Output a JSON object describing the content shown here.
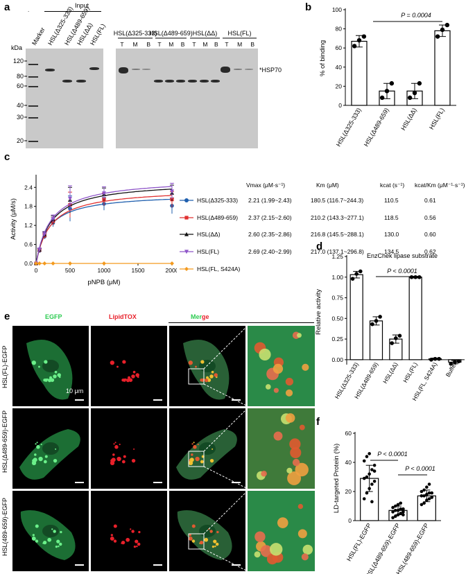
{
  "panels": {
    "a": {
      "label": "a",
      "dot": ".",
      "input_label": "Input",
      "marker_label": "Marker",
      "input_lanes": [
        "HSL(Δ325-333)",
        "HSL(Δ489-659)",
        "HSL(ΔΔ)",
        "HSL(FL)"
      ],
      "groups": [
        "HSL(Δ325-333)",
        "HSL(Δ489-659)",
        "HSL(ΔΔ)",
        "HSL(FL)"
      ],
      "lane_letters": [
        "T",
        "M",
        "B"
      ],
      "kda_label": "kDa",
      "kda": [
        "120",
        "80",
        "60",
        "40",
        "30",
        "20"
      ],
      "hsp70_label": "HSP70",
      "asterisk": "*"
    },
    "b": {
      "label": "b",
      "ylabel": "% of binding",
      "pvalue": "P = 0.0004",
      "yticks": [
        "0",
        "20",
        "40",
        "60",
        "80",
        "100"
      ],
      "categories": [
        "HSL(Δ325-333)",
        "HSL(Δ489-659)",
        "HSL(ΔΔ)",
        "HSL(FL)"
      ]
    },
    "c": {
      "label": "c",
      "ylabel": "Activity (μM/s)",
      "xlabel": "pNPB (μM)",
      "yticks": [
        "0.0",
        "0.6",
        "1.2",
        "1.8",
        "2.4"
      ],
      "xticks": [
        "0",
        "500",
        "1000",
        "1500",
        "2000"
      ],
      "table_headers": [
        "Vmax (μM·s⁻¹)",
        "Km (μM)",
        "kcat (s⁻¹)",
        "kcat/Km (μM⁻¹·s⁻¹)"
      ],
      "rows": [
        {
          "name": "HSL(Δ325-333)",
          "vmax": "2.21 (1.99~2.43)",
          "km": "180.5 (116.7~244.3)",
          "kcat": "110.5",
          "ratio": "0.61"
        },
        {
          "name": "HSL(Δ489-659)",
          "vmax": "2.37 (2.15~2.60)",
          "km": "210.2 (143.3~277.1)",
          "kcat": "118.5",
          "ratio": "0.56"
        },
        {
          "name": "HSL(ΔΔ)",
          "vmax": "2.60 (2.35~2.86)",
          "km": "216.8 (145.5~288.1)",
          "kcat": "130.0",
          "ratio": "0.60"
        },
        {
          "name": "HSL(FL)",
          "vmax": "2.69 (2.40~2.99)",
          "km": "217.0 (137.1~296.8)",
          "kcat": "134.5",
          "ratio": "0.62"
        },
        {
          "name": "HSL(FL, S424A)",
          "vmax": "",
          "km": "",
          "kcat": "",
          "ratio": ""
        }
      ]
    },
    "d": {
      "label": "d",
      "title": "EnzChek lipase substrate",
      "ylabel": "Relative activity",
      "pvalue": "P < 0.0001",
      "yticks": [
        "0.00",
        "0.25",
        "0.50",
        "0.75",
        "1.00",
        "1.25"
      ],
      "categories": [
        "HSL(Δ325-333)",
        "HSL(Δ489-659)",
        "HSL(ΔΔ)",
        "HSL(FL)",
        "HSL(FL, S424A)",
        "Buffer"
      ]
    },
    "e": {
      "label": "e",
      "col_egfp": "EGFP",
      "col_lipidtox": "LipidTOX",
      "col_merge_a": "Mer",
      "col_merge_b": "ge",
      "rows": [
        "HSL(FL)-EGFP",
        "HSL(Δ489-659)-EGFP",
        "HSL(489-659)-EGFP"
      ],
      "scalebar": "10 μm"
    },
    "f": {
      "label": "f",
      "ylabel": "LD-targeted Protein (%)",
      "pvalue1": "P < 0.0001",
      "pvalue2": "P < 0.0001",
      "yticks": [
        "0",
        "20",
        "40",
        "60"
      ],
      "categories": [
        "HSL(FL)-EGFP",
        "HSL(Δ489-659)-EGFP",
        "HSL(489-659)-EGFP"
      ]
    }
  },
  "colors": {
    "series": [
      "#1f5fae",
      "#e03030",
      "#111111",
      "#8e55c8",
      "#f39a1e"
    ],
    "egfp": "#2ecc52",
    "lipidtox": "#e8202a"
  },
  "chart_data": [
    {
      "id": "b",
      "type": "bar",
      "categories": [
        "HSL(Δ325-333)",
        "HSL(Δ489-659)",
        "HSL(ΔΔ)",
        "HSL(FL)"
      ],
      "values": [
        67,
        15,
        15,
        78
      ],
      "errors": [
        6,
        8,
        8,
        6
      ],
      "points": [
        [
          62,
          68,
          72
        ],
        [
          8,
          15,
          23
        ],
        [
          8,
          13,
          23
        ],
        [
          72,
          79,
          84
        ]
      ],
      "ylabel": "% of binding",
      "ylim": [
        0,
        100
      ]
    },
    {
      "id": "c",
      "type": "line",
      "x": [
        0,
        50,
        125,
        250,
        500,
        1000,
        2000
      ],
      "series": [
        {
          "name": "HSL(Δ325-333)",
          "values": [
            0,
            0.4,
            0.85,
            1.28,
            1.73,
            1.88,
            1.82
          ],
          "vmax": 2.21,
          "km": 180.5
        },
        {
          "name": "HSL(Δ489-659)",
          "values": [
            0,
            0.42,
            0.88,
            1.33,
            1.85,
            2.02,
            2.02
          ],
          "vmax": 2.37,
          "km": 210.2
        },
        {
          "name": "HSL(ΔΔ)",
          "values": [
            0,
            0.43,
            0.91,
            1.38,
            2.0,
            2.18,
            2.22
          ],
          "vmax": 2.6,
          "km": 216.8
        },
        {
          "name": "HSL(FL)",
          "values": [
            0,
            0.44,
            0.93,
            1.41,
            2.05,
            2.22,
            2.28
          ],
          "vmax": 2.69,
          "km": 217.0
        },
        {
          "name": "HSL(FL, S424A)",
          "values": [
            0,
            0,
            0,
            0,
            0,
            0,
            0
          ],
          "vmax": 0,
          "km": 1
        }
      ],
      "xlabel": "pNPB (μM)",
      "ylabel": "Activity (μM/s)",
      "xlim": [
        0,
        2000
      ],
      "ylim": [
        0,
        2.8
      ]
    },
    {
      "id": "d",
      "type": "bar",
      "title": "EnzChek lipase substrate",
      "categories": [
        "HSL(Δ325-333)",
        "HSL(Δ489-659)",
        "HSL(ΔΔ)",
        "HSL(FL)",
        "HSL(FL, S424A)",
        "Buffer"
      ],
      "values": [
        1.03,
        0.47,
        0.25,
        1.0,
        0.01,
        -0.03
      ],
      "errors": [
        0.04,
        0.05,
        0.05,
        0.01,
        0.01,
        0.02
      ],
      "points": [
        [
          0.98,
          1.04,
          1.07
        ],
        [
          0.43,
          0.47,
          0.52
        ],
        [
          0.2,
          0.26,
          0.29
        ],
        [
          1.0,
          1.0,
          1.0
        ],
        [
          0.0,
          0.01,
          0.01
        ],
        [
          -0.05,
          -0.03,
          -0.02
        ]
      ],
      "ylabel": "Relative activity",
      "ylim": [
        -0.06,
        1.25
      ]
    },
    {
      "id": "f",
      "type": "bar",
      "categories": [
        "HSL(FL)-EGFP",
        "HSL(Δ489-659)-EGFP",
        "HSL(489-659)-EGFP"
      ],
      "values": [
        29,
        7,
        17
      ],
      "errors": [
        9,
        3,
        4
      ],
      "points": [
        [
          15,
          19,
          22,
          25,
          27,
          29,
          30,
          32,
          35,
          38,
          41,
          44,
          46,
          13,
          34
        ],
        [
          2,
          3,
          4,
          5,
          6,
          6,
          7,
          7,
          8,
          8,
          9,
          10,
          11,
          12,
          4
        ],
        [
          11,
          12,
          14,
          15,
          16,
          17,
          17,
          18,
          19,
          19,
          20,
          21,
          23,
          25,
          16
        ]
      ],
      "ylabel": "LD-targeted Protein (%)",
      "ylim": [
        0,
        60
      ]
    }
  ]
}
